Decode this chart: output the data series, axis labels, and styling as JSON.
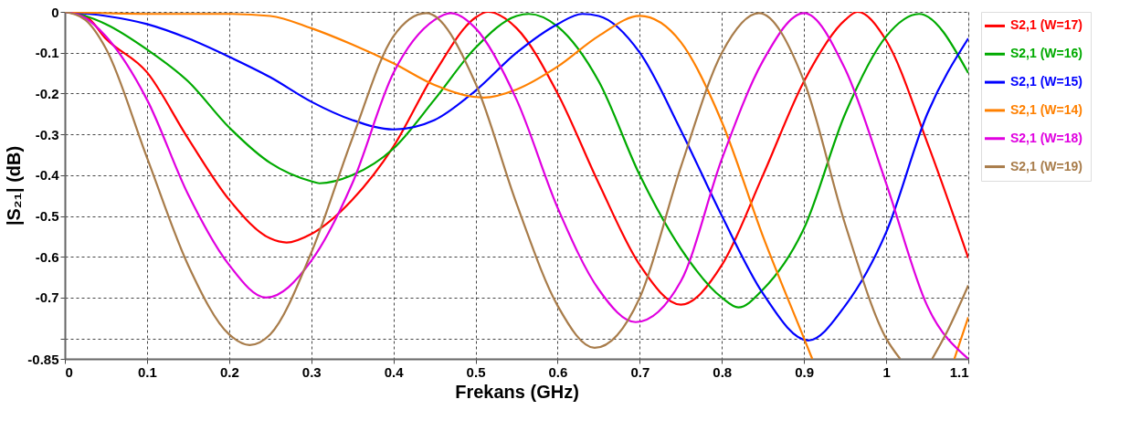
{
  "chart_data": {
    "type": "line",
    "xlabel": "Frekans (GHz)",
    "ylabel": "|S₂₁| (dB)",
    "xlim": [
      0,
      1.1
    ],
    "xticks": [
      0,
      0.1,
      0.2,
      0.3,
      0.4,
      0.5,
      0.6,
      0.7,
      0.8,
      0.9,
      1,
      1.1
    ],
    "ylim": [
      -0.85,
      0
    ],
    "yticks": [
      0,
      -0.1,
      -0.2,
      -0.3,
      -0.4,
      -0.5,
      -0.6,
      -0.7,
      {
        "value": -0.8,
        "label": null
      },
      -0.85
    ],
    "grid": true,
    "legend": "right",
    "marker": "none",
    "line_style": "solid",
    "series": [
      {
        "name": "S2,1 (W=17)",
        "color": "#ff0000",
        "x": [
          0,
          0.025,
          0.05,
          0.1,
          0.15,
          0.2,
          0.25,
          0.27,
          0.3,
          0.35,
          0.4,
          0.45,
          0.5,
          0.515,
          0.55,
          0.6,
          0.65,
          0.7,
          0.75,
          0.8,
          0.85,
          0.9,
          0.95,
          0.965,
          1,
          1.05,
          1.1
        ],
        "values": [
          0,
          -0.01,
          -0.066,
          -0.148,
          -0.31,
          -0.46,
          -0.555,
          -0.565,
          -0.544,
          -0.46,
          -0.33,
          -0.15,
          -0.014,
          0,
          -0.04,
          -0.2,
          -0.42,
          -0.62,
          -0.717,
          -0.62,
          -0.4,
          -0.17,
          -0.02,
          0,
          -0.07,
          -0.32,
          -0.603
        ]
      },
      {
        "name": "S2,1 (W=16)",
        "color": "#00aa00",
        "x": [
          0,
          0.025,
          0.05,
          0.1,
          0.15,
          0.2,
          0.25,
          0.3,
          0.31,
          0.35,
          0.4,
          0.45,
          0.5,
          0.55,
          0.565,
          0.6,
          0.65,
          0.7,
          0.75,
          0.8,
          0.82,
          0.85,
          0.9,
          0.95,
          1,
          1.04,
          1.1
        ],
        "values": [
          0,
          -0.01,
          -0.03,
          -0.092,
          -0.17,
          -0.283,
          -0.37,
          -0.415,
          -0.42,
          -0.4,
          -0.335,
          -0.215,
          -0.088,
          -0.01,
          -0.005,
          -0.036,
          -0.17,
          -0.4,
          -0.58,
          -0.7,
          -0.724,
          -0.68,
          -0.53,
          -0.25,
          -0.06,
          -0.005,
          -0.15
        ]
      },
      {
        "name": "S2,1 (W=15)",
        "color": "#0000ff",
        "x": [
          0,
          0.05,
          0.1,
          0.15,
          0.2,
          0.25,
          0.3,
          0.35,
          0.4,
          0.45,
          0.5,
          0.55,
          0.6,
          0.63,
          0.65,
          0.7,
          0.75,
          0.8,
          0.85,
          0.905,
          0.95,
          1,
          1.05,
          1.1
        ],
        "values": [
          0,
          -0.01,
          -0.03,
          -0.065,
          -0.11,
          -0.16,
          -0.22,
          -0.265,
          -0.288,
          -0.265,
          -0.193,
          -0.1,
          -0.03,
          -0.005,
          -0.01,
          -0.1,
          -0.29,
          -0.5,
          -0.69,
          -0.805,
          -0.72,
          -0.54,
          -0.25,
          -0.065
        ]
      },
      {
        "name": "S2,1 (W=14)",
        "color": "#ff8000",
        "x": [
          0,
          0.1,
          0.2,
          0.25,
          0.3,
          0.35,
          0.4,
          0.45,
          0.51,
          0.55,
          0.6,
          0.65,
          0.7,
          0.75,
          0.8,
          0.85,
          0.9,
          0.91,
          1,
          1.083,
          1.1
        ],
        "values": [
          0,
          -0.005,
          -0.005,
          -0.01,
          -0.04,
          -0.08,
          -0.126,
          -0.179,
          -0.21,
          -0.19,
          -0.134,
          -0.059,
          -0.01,
          -0.074,
          -0.27,
          -0.55,
          -0.8,
          -0.85,
          null,
          -0.85,
          -0.748
        ]
      },
      {
        "name": "S2,1 (W=18)",
        "color": "#e000e0",
        "x": [
          0,
          0.025,
          0.05,
          0.1,
          0.15,
          0.2,
          0.245,
          0.3,
          0.35,
          0.4,
          0.45,
          0.47,
          0.5,
          0.55,
          0.6,
          0.65,
          0.695,
          0.75,
          0.8,
          0.85,
          0.9,
          0.95,
          1,
          1.05,
          1.1
        ],
        "values": [
          0,
          -0.015,
          -0.06,
          -0.215,
          -0.447,
          -0.62,
          -0.7,
          -0.61,
          -0.42,
          -0.15,
          -0.02,
          -0.003,
          -0.04,
          -0.215,
          -0.48,
          -0.68,
          -0.76,
          -0.66,
          -0.36,
          -0.12,
          -0.003,
          -0.14,
          -0.42,
          -0.72,
          -0.85
        ]
      },
      {
        "name": "S2,1 (W=19)",
        "color": "#a87c4a",
        "x": [
          0,
          0.025,
          0.05,
          0.1,
          0.15,
          0.2,
          0.225,
          0.25,
          0.3,
          0.35,
          0.4,
          0.44,
          0.5,
          0.55,
          0.6,
          0.645,
          0.7,
          0.75,
          0.8,
          0.845,
          0.9,
          0.95,
          1,
          1.017,
          1.035,
          1.056,
          1.075,
          1.1
        ],
        "values": [
          0,
          -0.02,
          -0.09,
          -0.357,
          -0.62,
          -0.79,
          -0.816,
          -0.79,
          -0.59,
          -0.31,
          -0.06,
          -0.003,
          -0.175,
          -0.47,
          -0.72,
          -0.823,
          -0.7,
          -0.38,
          -0.1,
          -0.003,
          -0.17,
          -0.52,
          -0.8,
          -0.85,
          null,
          -0.85,
          -0.78,
          -0.67
        ]
      }
    ]
  }
}
